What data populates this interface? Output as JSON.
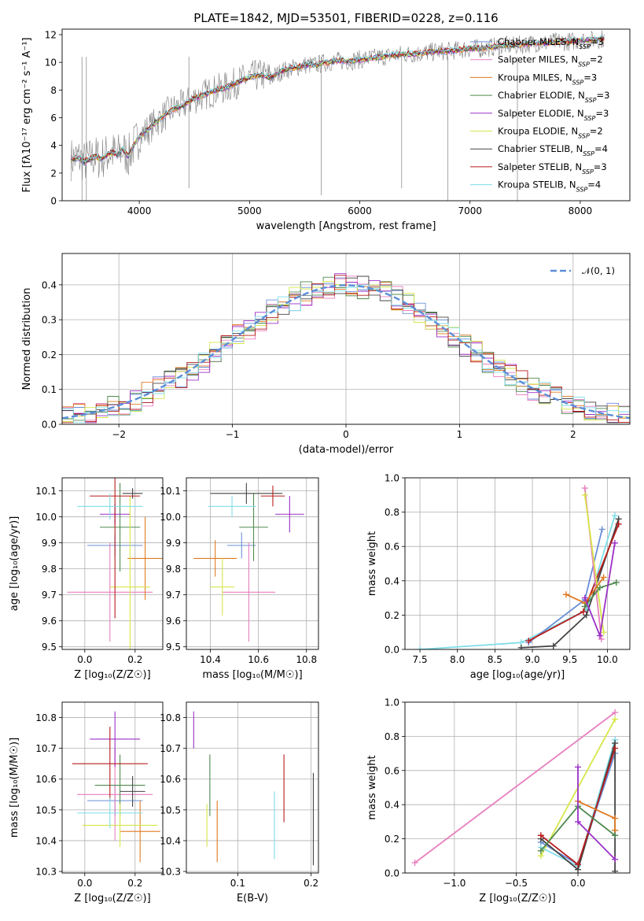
{
  "title": "PLATE=1842, MJD=53501, FIBERID=0228, z=0.116",
  "colors": {
    "spectrum": "#808080",
    "chabrier_miles": "#6a8fd8",
    "salpeter_miles": "#e87fbf",
    "kroupa_miles": "#e07a20",
    "chabrier_elodie": "#4f8a4f",
    "salpeter_elodie": "#9b30c8",
    "kroupa_elodie": "#d6e64a",
    "chabrier_stelib": "#454545",
    "salpeter_stelib": "#b81c1c",
    "kroupa_stelib": "#7fdde8",
    "gauss": "#5b8fd8"
  },
  "chart_data": [
    {
      "id": "spectrum",
      "type": "line",
      "title": "PLATE=1842, MJD=53501, FIBERID=0228, z=0.116",
      "xlabel": "wavelength [Angstrom, rest frame]",
      "ylabel": "Flux [fλ10⁻¹⁷ erg cm⁻² s⁻¹ A⁻¹]",
      "xlim": [
        3300,
        8450
      ],
      "ylim": [
        0,
        12.4
      ],
      "xticks": [
        "4000",
        "5000",
        "6000",
        "7000",
        "8000"
      ],
      "yticks": [
        "0",
        "2",
        "4",
        "6",
        "8",
        "10",
        "12"
      ],
      "legend_position": "right",
      "legend": [
        "Chabrier MILES, N_SSP=3",
        "Salpeter MILES, N_SSP=2",
        "Kroupa MILES, N_SSP=3",
        "Chabrier ELODIE, N_SSP=3",
        "Salpeter ELODIE, N_SSP=3",
        "Kroupa ELODIE, N_SSP=2",
        "Chabrier STELIB, N_SSP=4",
        "Salpeter STELIB, N_SSP=3",
        "Kroupa STELIB, N_SSP=4"
      ],
      "model_x": [
        3380,
        3450,
        3500,
        3550,
        3600,
        3650,
        3700,
        3750,
        3800,
        3850,
        3900,
        3950,
        4000,
        4100,
        4200,
        4300,
        4400,
        4500,
        4600,
        4700,
        4800,
        4900,
        5000,
        5100,
        5200,
        5300,
        5400,
        5500,
        5600,
        5700,
        5800,
        5900,
        6000,
        6100,
        6200,
        6300,
        6400,
        6500,
        6600,
        6700,
        6800,
        6900,
        7000,
        7100,
        7200,
        7300,
        7400,
        7500,
        7600,
        7700,
        7800,
        7900,
        8000,
        8100,
        8200
      ],
      "model_y": [
        3.0,
        3.1,
        2.8,
        3.0,
        3.2,
        3.0,
        3.3,
        3.5,
        3.3,
        3.7,
        3.2,
        4.0,
        4.6,
        5.3,
        6.0,
        6.6,
        6.9,
        7.4,
        7.7,
        8.0,
        8.2,
        8.6,
        8.9,
        9.1,
        8.9,
        9.4,
        9.6,
        9.8,
        9.8,
        10.0,
        10.1,
        10.1,
        10.2,
        10.3,
        10.4,
        10.5,
        10.6,
        10.6,
        10.7,
        10.8,
        10.8,
        10.9,
        11.0,
        11.0,
        11.1,
        11.2,
        11.2,
        11.3,
        11.4,
        11.4,
        11.5,
        11.5,
        11.6,
        11.6,
        11.7
      ]
    },
    {
      "id": "residuals",
      "type": "histogram",
      "xlabel": "(data-model)/error",
      "ylabel": "Normed distribution",
      "xlim": [
        -2.5,
        2.5
      ],
      "ylim": [
        0,
        0.49
      ],
      "xticks": [
        "−2",
        "−1",
        "0",
        "1",
        "2"
      ],
      "yticks": [
        "0.0",
        "0.1",
        "0.2",
        "0.3",
        "0.4"
      ],
      "legend_position": "top-right",
      "gauss_label": "𝒩(0, 1)",
      "bin_width": 0.1,
      "bin_start": -2.5
    },
    {
      "id": "age_vs_Z",
      "type": "scatter",
      "xlabel": "Z [log₁₀(Z/Z☉)]",
      "ylabel": "age  [log₁₀(age/yr)]",
      "xlim": [
        -0.09,
        0.31
      ],
      "ylim": [
        9.49,
        10.15
      ],
      "xticks": [
        "0.0",
        "0.2"
      ],
      "yticks": [
        "9.5",
        "9.6",
        "9.7",
        "9.8",
        "9.9",
        "10.0",
        "10.1"
      ],
      "points": [
        {
          "model": "chabrier_miles",
          "x": 0.12,
          "xerr": 0.11,
          "y": 9.89,
          "yerr": 0.04
        },
        {
          "model": "salpeter_miles",
          "x": 0.1,
          "xerr": 0.17,
          "y": 9.71,
          "yerr": 0.19
        },
        {
          "model": "kroupa_miles",
          "x": 0.24,
          "xerr": 0.07,
          "y": 9.84,
          "yerr": 0.16
        },
        {
          "model": "chabrier_elodie",
          "x": 0.14,
          "xerr": 0.08,
          "y": 9.96,
          "yerr": 0.17
        },
        {
          "model": "salpeter_elodie",
          "x": 0.12,
          "xerr": 0.06,
          "y": 10.01,
          "yerr": 0.04
        },
        {
          "model": "kroupa_elodie",
          "x": 0.18,
          "xerr": 0.08,
          "y": 9.73,
          "yerr": 0.35
        },
        {
          "model": "chabrier_stelib",
          "x": 0.19,
          "xerr": 0.04,
          "y": 10.09,
          "yerr": 0.02
        },
        {
          "model": "salpeter_stelib",
          "x": 0.12,
          "xerr": 0.1,
          "y": 10.08,
          "yerr": 0.47
        },
        {
          "model": "kroupa_stelib",
          "x": 0.1,
          "xerr": 0.13,
          "y": 10.04,
          "yerr": 0.05
        }
      ]
    },
    {
      "id": "age_vs_mass",
      "type": "scatter",
      "xlabel": "mass [log₁₀(M/M☉)]",
      "ylabel": "",
      "xlim": [
        10.3,
        10.85
      ],
      "ylim": [
        9.49,
        10.15
      ],
      "xticks": [
        "10.4",
        "10.6",
        "10.8"
      ],
      "yticks": [
        "9.5",
        "9.6",
        "9.7",
        "9.8",
        "9.9",
        "10.0",
        "10.1"
      ],
      "points": [
        {
          "model": "chabrier_miles",
          "x": 10.53,
          "xerr": 0.06,
          "y": 9.89,
          "yerr": 0.05
        },
        {
          "model": "salpeter_miles",
          "x": 10.56,
          "xerr": 0.11,
          "y": 9.71,
          "yerr": 0.19
        },
        {
          "model": "kroupa_miles",
          "x": 10.42,
          "xerr": 0.09,
          "y": 9.84,
          "yerr": 0.07
        },
        {
          "model": "chabrier_elodie",
          "x": 10.58,
          "xerr": 0.06,
          "y": 9.96,
          "yerr": 0.13
        },
        {
          "model": "salpeter_elodie",
          "x": 10.73,
          "xerr": 0.06,
          "y": 10.01,
          "yerr": 0.07
        },
        {
          "model": "kroupa_elodie",
          "x": 10.45,
          "xerr": 0.05,
          "y": 9.73,
          "yerr": 0.11
        },
        {
          "model": "chabrier_stelib",
          "x": 10.55,
          "xerr": 0.15,
          "y": 10.09,
          "yerr": 0.04
        },
        {
          "model": "salpeter_stelib",
          "x": 10.66,
          "xerr": 0.05,
          "y": 10.08,
          "yerr": 0.04
        },
        {
          "model": "kroupa_stelib",
          "x": 10.49,
          "xerr": 0.1,
          "y": 10.04,
          "yerr": 0.04
        }
      ]
    },
    {
      "id": "weight_vs_age",
      "type": "line",
      "xlabel": "age  [log₁₀(age/yr)]",
      "ylabel": "mass weight",
      "xlim": [
        7.3,
        10.3
      ],
      "ylim": [
        0,
        1.0
      ],
      "xticks": [
        "7.5",
        "8.0",
        "8.5",
        "9.0",
        "9.5",
        "10.0"
      ],
      "yticks": [
        "0.0",
        "0.2",
        "0.4",
        "0.6",
        "0.8",
        "1.0"
      ],
      "series": [
        {
          "model": "kroupa_stelib",
          "x": [
            7.5,
            8.85,
            9.72,
            10.1
          ],
          "y": [
            0.0,
            0.04,
            0.23,
            0.78
          ]
        },
        {
          "model": "chabrier_miles",
          "x": [
            8.95,
            9.7,
            9.93
          ],
          "y": [
            0.04,
            0.29,
            0.7
          ]
        },
        {
          "model": "chabrier_stelib",
          "x": [
            8.85,
            9.28,
            9.72,
            10.15
          ],
          "y": [
            0.01,
            0.02,
            0.2,
            0.76
          ]
        },
        {
          "model": "salpeter_stelib",
          "x": [
            8.95,
            9.68,
            10.15
          ],
          "y": [
            0.05,
            0.22,
            0.73
          ]
        },
        {
          "model": "salpeter_miles",
          "x": [
            9.7,
            9.92
          ],
          "y": [
            0.94,
            0.06
          ]
        },
        {
          "model": "kroupa_elodie",
          "x": [
            9.7,
            9.95
          ],
          "y": [
            0.9,
            0.1
          ]
        },
        {
          "model": "kroupa_miles",
          "x": [
            9.45,
            9.7,
            9.95
          ],
          "y": [
            0.32,
            0.27,
            0.42
          ]
        },
        {
          "model": "chabrier_elodie",
          "x": [
            9.7,
            9.9,
            10.12
          ],
          "y": [
            0.25,
            0.36,
            0.39
          ]
        },
        {
          "model": "salpeter_elodie",
          "x": [
            9.7,
            9.9,
            10.1
          ],
          "y": [
            0.3,
            0.08,
            0.62
          ]
        }
      ]
    },
    {
      "id": "mass_vs_Z",
      "type": "scatter",
      "xlabel": "Z [log₁₀(Z/Z☉)]",
      "ylabel": "mass [log₁₀(M/M☉)]",
      "xlim": [
        -0.09,
        0.31
      ],
      "ylim": [
        10.295,
        10.85
      ],
      "xticks": [
        "0.0",
        "0.2"
      ],
      "yticks": [
        "10.3",
        "10.4",
        "10.5",
        "10.6",
        "10.7",
        "10.8"
      ],
      "points": [
        {
          "model": "chabrier_miles",
          "x": 0.12,
          "xerr": 0.11,
          "y": 10.53,
          "yerr": 0.05
        },
        {
          "model": "salpeter_miles",
          "x": 0.12,
          "xerr": 0.15,
          "y": 10.55,
          "yerr": 0.15
        },
        {
          "model": "kroupa_miles",
          "x": 0.22,
          "xerr": 0.08,
          "y": 10.43,
          "yerr": 0.1
        },
        {
          "model": "chabrier_elodie",
          "x": 0.14,
          "xerr": 0.1,
          "y": 10.58,
          "yerr": 0.1
        },
        {
          "model": "salpeter_elodie",
          "x": 0.12,
          "xerr": 0.1,
          "y": 10.73,
          "yerr": 0.09
        },
        {
          "model": "kroupa_elodie",
          "x": 0.14,
          "xerr": 0.15,
          "y": 10.45,
          "yerr": 0.07
        },
        {
          "model": "chabrier_stelib",
          "x": 0.19,
          "xerr": 0.05,
          "y": 10.56,
          "yerr": 0.05
        },
        {
          "model": "salpeter_stelib",
          "x": 0.1,
          "xerr": 0.15,
          "y": 10.65,
          "yerr": 0.12
        },
        {
          "model": "kroupa_stelib",
          "x": 0.1,
          "xerr": 0.13,
          "y": 10.49,
          "yerr": 0.05
        }
      ]
    },
    {
      "id": "mass_vs_ebv",
      "type": "scatter",
      "xlabel": "E(B-V)",
      "ylabel": "",
      "xlim": [
        0.03,
        0.21
      ],
      "ylim": [
        10.295,
        10.85
      ],
      "xticks": [
        "0.1",
        "0.2"
      ],
      "yticks": [
        "10.3",
        "10.4",
        "10.5",
        "10.6",
        "10.7",
        "10.8"
      ],
      "points": [
        {
          "model": "salpeter_elodie",
          "x": 0.04,
          "y": 10.76,
          "yerr": 0.06
        },
        {
          "model": "chabrier_elodie",
          "x": 0.062,
          "y": 10.58,
          "yerr": 0.1
        },
        {
          "model": "kroupa_elodie",
          "x": 0.058,
          "y": 10.45,
          "yerr": 0.07
        },
        {
          "model": "kroupa_miles",
          "x": 0.072,
          "y": 10.43,
          "yerr": 0.1
        },
        {
          "model": "kroupa_stelib",
          "x": 0.15,
          "y": 10.45,
          "yerr": 0.11
        },
        {
          "model": "salpeter_stelib",
          "x": 0.163,
          "y": 10.57,
          "yerr": 0.11
        },
        {
          "model": "chabrier_stelib",
          "x": 0.203,
          "y": 10.47,
          "yerr": 0.15
        }
      ]
    },
    {
      "id": "weight_vs_Z",
      "type": "line",
      "xlabel": "Z [log₁₀(Z/Z☉)]",
      "ylabel": "mass weight",
      "xlim": [
        -1.4,
        0.42
      ],
      "ylim": [
        0,
        1.0
      ],
      "xticks": [
        "−1.0",
        "−0.5",
        "0.0"
      ],
      "yticks": [
        "0.0",
        "0.2",
        "0.4",
        "0.6",
        "0.8",
        "1.0"
      ],
      "series": [
        {
          "model": "salpeter_miles",
          "x": [
            -1.32,
            0.3
          ],
          "y": [
            0.06,
            0.94
          ]
        },
        {
          "model": "kroupa_elodie",
          "x": [
            -0.3,
            0.3
          ],
          "y": [
            0.1,
            0.9
          ]
        },
        {
          "model": "chabrier_miles",
          "x": [
            -0.3,
            0.0,
            0.3
          ],
          "y": [
            0.18,
            0.05,
            0.7
          ]
        },
        {
          "model": "kroupa_stelib",
          "x": [
            -0.3,
            0.0,
            0.3
          ],
          "y": [
            0.15,
            0.04,
            0.78
          ]
        },
        {
          "model": "chabrier_stelib",
          "x": [
            -0.3,
            0.0,
            0.3,
            0.3
          ],
          "y": [
            0.2,
            0.02,
            0.76,
            0.01
          ]
        },
        {
          "model": "salpeter_stelib",
          "x": [
            -0.3,
            0.0,
            0.3
          ],
          "y": [
            0.22,
            0.05,
            0.73
          ]
        },
        {
          "model": "kroupa_miles",
          "x": [
            0.0,
            0.3,
            0.3
          ],
          "y": [
            0.42,
            0.32,
            0.25
          ]
        },
        {
          "model": "chabrier_elodie",
          "x": [
            -0.3,
            0.0,
            0.3
          ],
          "y": [
            0.13,
            0.39,
            0.22
          ]
        },
        {
          "model": "salpeter_elodie",
          "x": [
            0.0,
            0.0,
            0.3
          ],
          "y": [
            0.62,
            0.3,
            0.08
          ]
        }
      ]
    }
  ]
}
